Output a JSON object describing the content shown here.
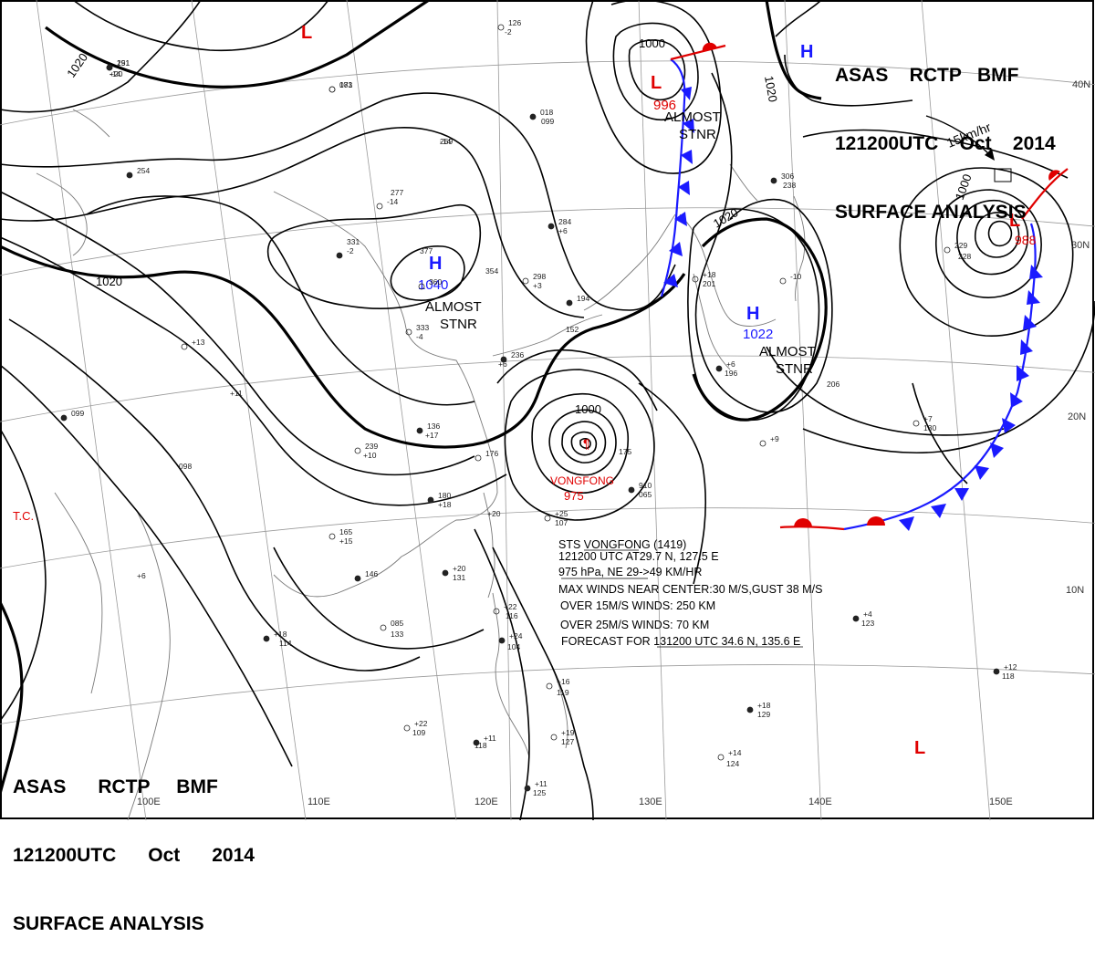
{
  "header_top": {
    "line1": "ASAS    RCTP   BMF",
    "line2": "121200UTC    Oct    2014",
    "line3": "SURFACE ANALYSIS"
  },
  "header_bottom": {
    "line1": "ASAS      RCTP     BMF",
    "line2": "121200UTC      Oct      2014",
    "line3": "SURFACE ANALYSIS"
  },
  "pressure_centers": [
    {
      "kind": "L",
      "color": "#e00000"
    },
    {
      "kind": "L",
      "color": "#e00000",
      "value": "996"
    },
    {
      "kind": "H",
      "color": "#1a1aff"
    },
    {
      "kind": "H",
      "color": "#1a1aff",
      "value": "1040",
      "note": "ALMOST STNR"
    },
    {
      "kind": "H",
      "color": "#1a1aff",
      "value": "1022",
      "note": "ALMOST STNR"
    },
    {
      "kind": "L",
      "color": "#e00000",
      "value": "988"
    },
    {
      "kind": "L",
      "color": "#e00000"
    }
  ],
  "stnr_notes": {
    "almost": "ALMOST",
    "stnr": "STNR"
  },
  "isobar_labels": [
    "1000",
    "1020",
    "1020",
    "1020",
    "1000",
    "1000"
  ],
  "motion_label": "15km/hr",
  "tc": {
    "marker": "T.C.",
    "name": "VONGFONG",
    "center_pressure": "975",
    "info": [
      "STS  VONGFONG  (1419)",
      "121200 UTC  AT29.7 N, 127.5 E",
      "975 hPa, NE  29->49 KM/HR",
      "MAX WINDS NEAR CENTER:30 M/S,GUST 38 M/S",
      "OVER 15M/S WINDS: 250 KM",
      "OVER 25M/S WINDS: 70 KM",
      "FORECAST FOR 131200 UTC 34.6 N, 135.6 E"
    ]
  },
  "graticule_labels": {
    "lon": [
      "100E",
      "110E",
      "120E",
      "130E",
      "140E",
      "150E"
    ],
    "lat": [
      "40N",
      "30N",
      "20N",
      "10N"
    ]
  },
  "station_plots": [
    "191",
    "+20",
    "081",
    "269",
    "254",
    "277",
    "-14",
    "331",
    "-2",
    "377",
    "360",
    "354",
    "284",
    "+6",
    "298",
    "+3",
    "194",
    "152",
    "333",
    "-4",
    "236",
    "+6",
    "+13",
    "+11",
    "099",
    "098",
    "176",
    "+20",
    "180",
    "+18",
    "239",
    "+10",
    "136",
    "+17",
    "165",
    "+15",
    "146",
    "+6",
    "085",
    "133",
    "+18",
    "114",
    "+25",
    "107",
    "+20",
    "131",
    "+22",
    "116",
    "+24",
    "104",
    "+16",
    "119",
    "+11",
    "118",
    "+22",
    "109",
    "+11",
    "125",
    "+19",
    "127",
    "+18",
    "129",
    "+14",
    "124",
    "+12",
    "118",
    "+7",
    "130",
    "+4",
    "123",
    "+9",
    "175",
    "910",
    "065",
    "+18",
    "201",
    "+6",
    "196",
    "-10",
    "206",
    "306",
    "238",
    "229",
    "228",
    "018",
    "099",
    "126",
    "-2",
    "251",
    "-14",
    "173",
    "-14"
  ],
  "colors": {
    "isobar": "#000000",
    "graticule": "#9a9a9a",
    "coast": "#7a7a7a",
    "cold_front": "#1a1aff",
    "warm_front": "#e00000"
  }
}
